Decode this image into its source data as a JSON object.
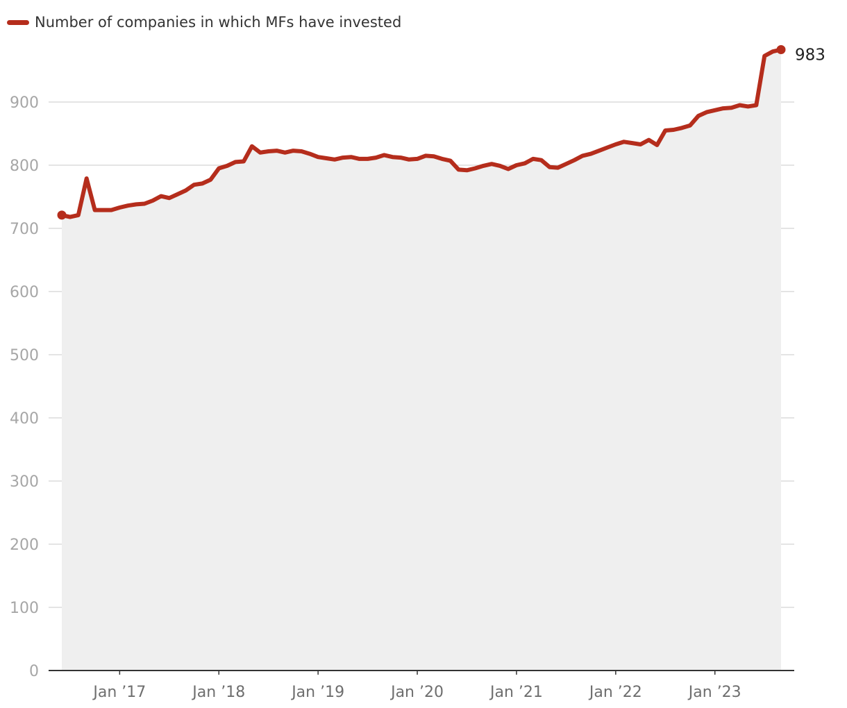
{
  "legend": {
    "label": "Number of companies in which MFs have invested"
  },
  "colors": {
    "line": "#b52d1c",
    "area": "#efefef",
    "grid": "#dcdcdc",
    "axis": "#333333"
  },
  "chart_data": {
    "type": "area",
    "grid": true,
    "legend_position": "top-left",
    "ylim": [
      0,
      1000
    ],
    "y_ticks": [
      "0",
      "100",
      "200",
      "300",
      "400",
      "500",
      "600",
      "700",
      "800",
      "900"
    ],
    "x_tick_labels": [
      "Jan ’17",
      "Jan ’18",
      "Jan ’19",
      "Jan ’20",
      "Jan ’21",
      "Jan ’22",
      "Jan ’23"
    ],
    "x_tick_positions": [
      7,
      19,
      31,
      43,
      55,
      67,
      79
    ],
    "end_label": "983",
    "series": [
      {
        "name": "Number of companies in which MFs have invested",
        "start": "Jun 2016",
        "values": [
          721,
          718,
          721,
          779,
          729,
          729,
          729,
          733,
          736,
          738,
          739,
          744,
          751,
          748,
          754,
          760,
          769,
          771,
          777,
          795,
          799,
          805,
          806,
          830,
          820,
          822,
          823,
          820,
          823,
          822,
          818,
          813,
          811,
          809,
          812,
          813,
          810,
          810,
          812,
          816,
          813,
          812,
          809,
          810,
          815,
          814,
          810,
          807,
          793,
          792,
          795,
          799,
          802,
          799,
          794,
          800,
          803,
          810,
          808,
          797,
          796,
          802,
          808,
          815,
          818,
          823,
          828,
          833,
          837,
          835,
          833,
          840,
          832,
          855,
          856,
          859,
          863,
          878,
          884,
          887,
          890,
          891,
          895,
          893,
          895,
          973,
          980,
          983
        ]
      }
    ]
  }
}
